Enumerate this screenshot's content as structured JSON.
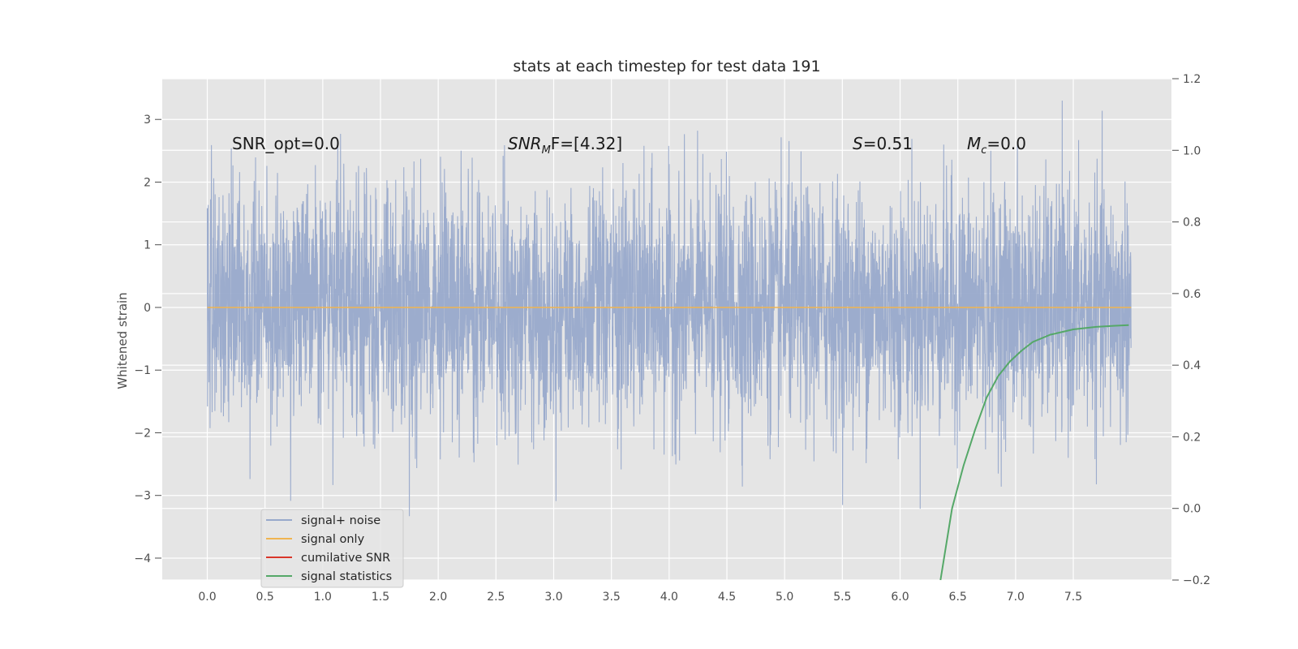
{
  "chart_data": {
    "type": "line",
    "title": "stats at each timestep for test data 191",
    "ylabel": "Whitened strain",
    "xlabel": "",
    "xlim": [
      -0.39,
      8.35
    ],
    "ylim": [
      -4.35,
      3.65
    ],
    "y2lim": [
      -0.2,
      1.2
    ],
    "x_ticks": [
      "0.0",
      "0.5",
      "1.0",
      "1.5",
      "2.0",
      "2.5",
      "3.0",
      "3.5",
      "4.0",
      "4.5",
      "5.0",
      "5.5",
      "6.0",
      "6.5",
      "7.0",
      "7.5"
    ],
    "y_ticks": [
      "3",
      "2",
      "1",
      "0",
      "−1",
      "−2",
      "−3",
      "−4"
    ],
    "y2_ticks": [
      "1.2",
      "1.0",
      "0.8",
      "0.6",
      "0.4",
      "0.2",
      "0.0",
      "−0.2"
    ],
    "grid": true,
    "legend_position": "lower-left",
    "series": [
      {
        "name": "signal+ noise",
        "color": "#98a9cb",
        "description_kind": "dense noise",
        "x_range": [
          0.0,
          8.0
        ],
        "std": 0.95
      },
      {
        "name": "signal only",
        "color": "#f0b450",
        "values": [
          [
            0.0,
            0.0
          ],
          [
            8.0,
            0.0
          ]
        ]
      },
      {
        "name": "cumilative SNR",
        "color": "#d9362a",
        "values": []
      },
      {
        "name": "signal statistics",
        "color": "#55a868",
        "axis": "right",
        "values": [
          [
            6.35,
            -0.2
          ],
          [
            6.45,
            0.0
          ],
          [
            6.55,
            0.12
          ],
          [
            6.65,
            0.22
          ],
          [
            6.75,
            0.31
          ],
          [
            6.85,
            0.37
          ],
          [
            6.95,
            0.41
          ],
          [
            7.05,
            0.44
          ],
          [
            7.15,
            0.465
          ],
          [
            7.3,
            0.485
          ],
          [
            7.5,
            0.5
          ],
          [
            7.7,
            0.507
          ],
          [
            7.85,
            0.51
          ],
          [
            7.98,
            0.512
          ]
        ]
      }
    ],
    "annotations": [
      {
        "text": "SNR_opt=0.0",
        "x": 0.2,
        "y": 2.5
      },
      {
        "text_main": "SNR",
        "text_sub": "M",
        "text_rest": "F=[4.32]",
        "x": 2.6,
        "y": 2.5
      },
      {
        "text_main": "S",
        "text_rest": "=0.51",
        "x": 5.6,
        "y": 2.5
      },
      {
        "text_main": "M",
        "text_sub": "c",
        "text_rest": "=0.0",
        "x": 6.6,
        "y": 2.5
      }
    ],
    "legend": [
      "signal+ noise",
      "signal only",
      "cumilative SNR",
      "signal statistics"
    ]
  }
}
